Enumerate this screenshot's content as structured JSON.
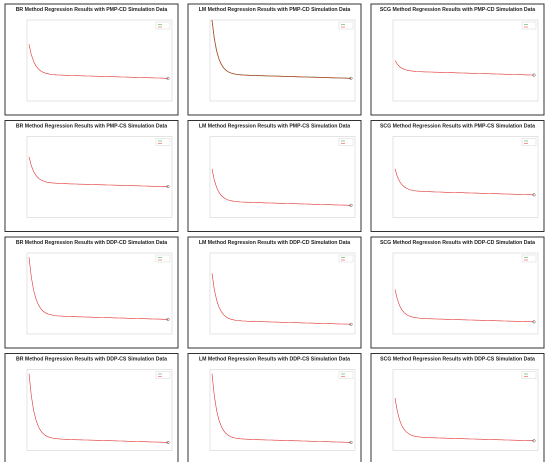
{
  "panels": [
    {
      "title": "BR Method Regression Results with PMP-CD Simulation Data"
    },
    {
      "title": "LM Method Regression Results with PMP-CD Simulation Data"
    },
    {
      "title": "SCG Method Regression Results with PMP-CD Simulation Data"
    },
    {
      "title": "BR Method Regression Results with PMP-CS Simulation Data"
    },
    {
      "title": "LM Method Regression Results with PMP-CS Simulation Data"
    },
    {
      "title": "SCG Method Regression Results with PMP-CS Simulation Data"
    },
    {
      "title": "BR Method Regression Results with DDP-CD Simulation Data"
    },
    {
      "title": "LM Method Regression Results with DDP-CD Simulation Data"
    },
    {
      "title": "SCG Method Regression Results with DDP-CD Simulation Data"
    },
    {
      "title": "BR Method Regression Results with DDP-CS Simulation Data"
    },
    {
      "title": "LM Method Regression Results with DDP-CS Simulation Data"
    },
    {
      "title": "SCG Method Regression Results with DDP-CS Simulation Data"
    }
  ]
}
